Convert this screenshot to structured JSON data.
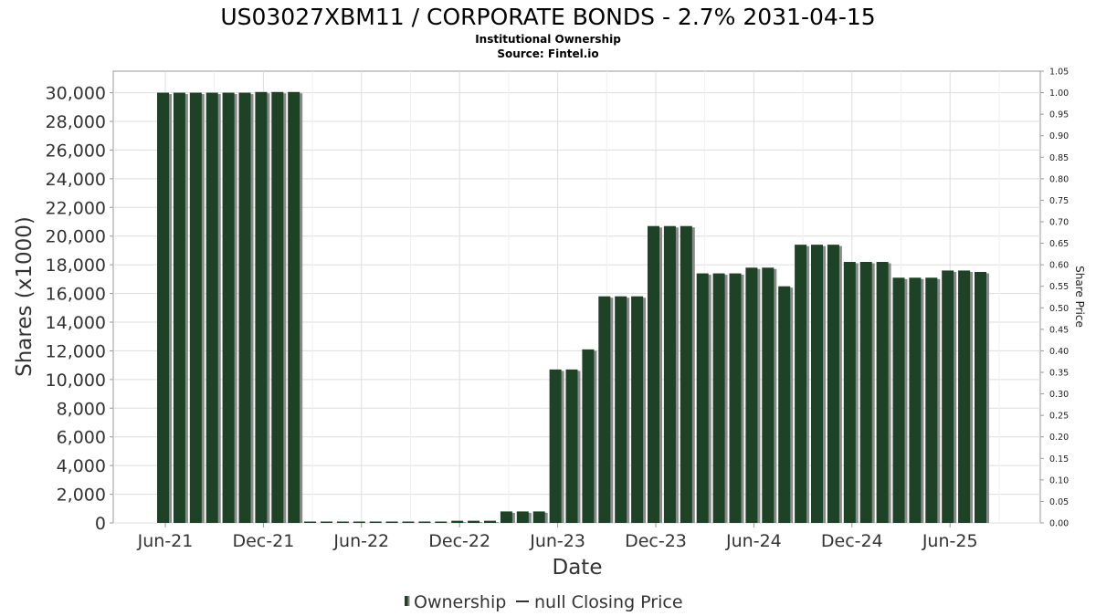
{
  "chart_data": {
    "type": "bar",
    "title": "US03027XBM11 / CORPORATE BONDS - 2.7% 2031-04-15",
    "subtitles": [
      "Institutional Ownership",
      "Source: Fintel.io"
    ],
    "xlabel": "Date",
    "ylabel": "Shares (x1000)",
    "y2label": "Share Price",
    "ylim": [
      0,
      31500
    ],
    "y2lim": [
      0,
      1.05
    ],
    "yticks": [
      "0",
      "2,000",
      "4,000",
      "6,000",
      "8,000",
      "10,000",
      "12,000",
      "14,000",
      "16,000",
      "18,000",
      "20,000",
      "22,000",
      "24,000",
      "26,000",
      "28,000",
      "30,000"
    ],
    "y2ticks": [
      "0.00",
      "0.05",
      "0.10",
      "0.15",
      "0.20",
      "0.25",
      "0.30",
      "0.35",
      "0.40",
      "0.45",
      "0.50",
      "0.55",
      "0.60",
      "0.65",
      "0.70",
      "0.75",
      "0.80",
      "0.85",
      "0.90",
      "0.95",
      "1.00",
      "1.05"
    ],
    "xticks": [
      "Jun-21",
      "Dec-21",
      "Jun-22",
      "Dec-22",
      "Jun-23",
      "Dec-23",
      "Jun-24",
      "Dec-24",
      "Jun-25"
    ],
    "grid": true,
    "legend_placement": "bottom",
    "series": [
      {
        "name": "Ownership",
        "color": "#1d4225",
        "values": [
          30000,
          30000,
          30000,
          30000,
          30000,
          30000,
          30050,
          30050,
          30050,
          0,
          0,
          0,
          0,
          0,
          0,
          0,
          0,
          0,
          150,
          150,
          150,
          800,
          800,
          800,
          10700,
          10700,
          12100,
          15800,
          15800,
          15800,
          20700,
          20700,
          20700,
          17400,
          17400,
          17400,
          17800,
          17800,
          16500,
          19400,
          19400,
          19400,
          18200,
          18200,
          18200,
          17100,
          17100,
          17100,
          17600,
          17600,
          17500
        ]
      }
    ],
    "legend": [
      {
        "label": "Ownership",
        "color": "#1d4225",
        "symbol": "bar"
      },
      {
        "label": "null Closing Price",
        "color": "#333333",
        "symbol": "line"
      }
    ]
  }
}
